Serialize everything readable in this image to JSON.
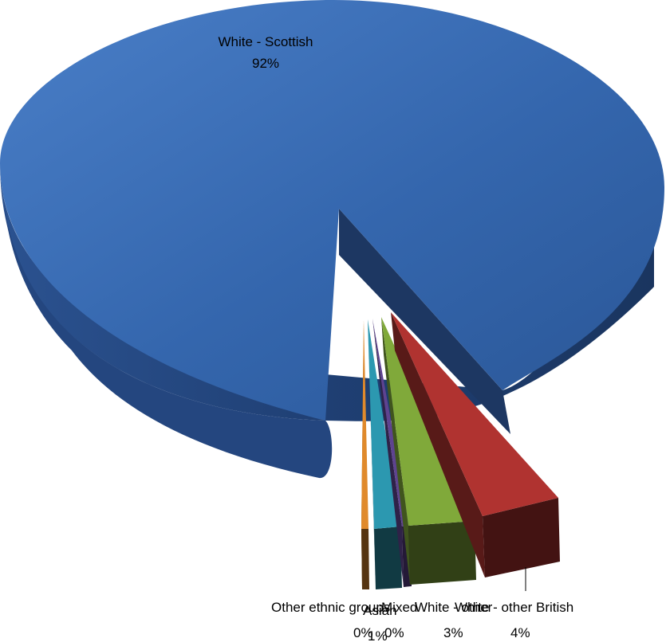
{
  "chart_data": {
    "type": "pie",
    "title": "",
    "slices": [
      {
        "name": "White - Scottish",
        "value": 92,
        "value_label": "92%",
        "color": "#3b6fb8"
      },
      {
        "name": "White - other British",
        "value": 4,
        "value_label": "4%",
        "color": "#b03330"
      },
      {
        "name": "White - other",
        "value": 3,
        "value_label": "3%",
        "color": "#80a93a"
      },
      {
        "name": "Mixed",
        "value": 0,
        "value_label": "0%",
        "color": "#5e4390"
      },
      {
        "name": "Asian",
        "value": 1,
        "value_label": "1%",
        "color": "#2c98b0"
      },
      {
        "name": "Other ethnic groups",
        "value": 0,
        "value_label": "0%",
        "color": "#e08a2c"
      }
    ],
    "legend": "none",
    "style": "3d-exploded"
  }
}
